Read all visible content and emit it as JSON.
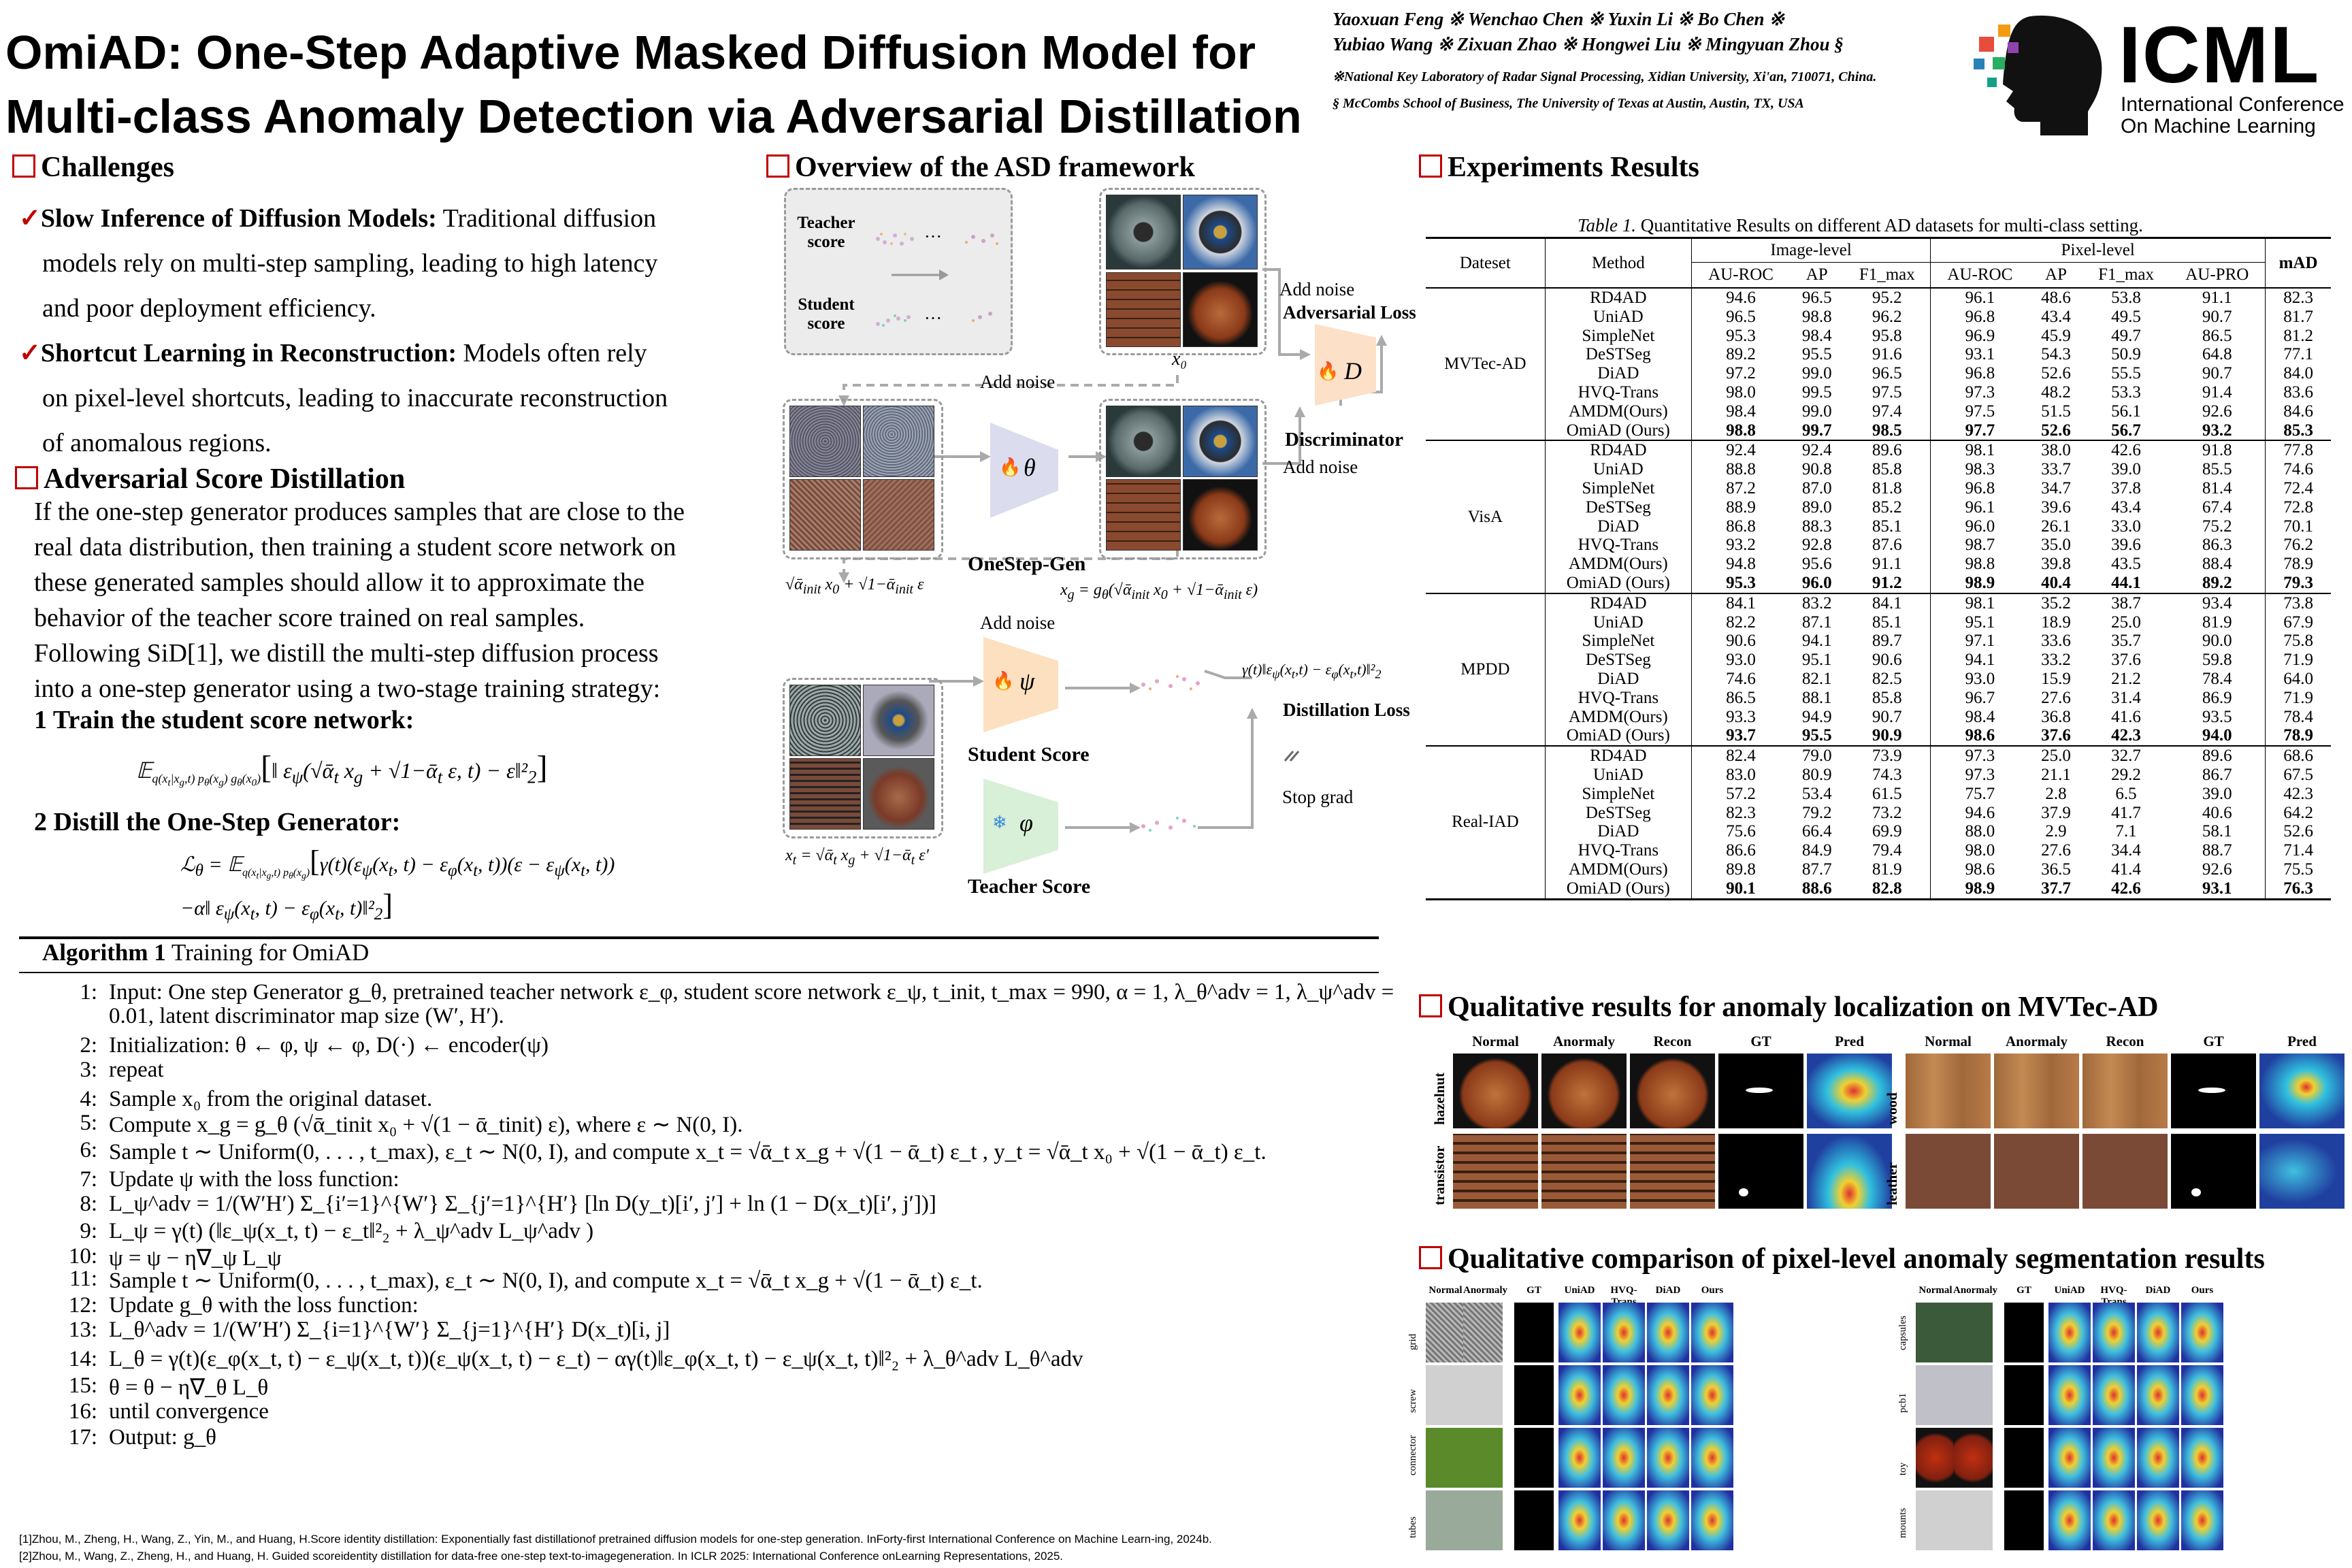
{
  "title": {
    "line1": "OmiAD: One-Step Adaptive Masked Diffusion Model for",
    "line2": "Multi-class Anomaly Detection via Adversarial Distillation"
  },
  "authors": {
    "line1": "Yaoxuan Feng ※   Wenchao Chen ※   Yuxin Li ※  Bo Chen ※",
    "line2": "Yubiao Wang ※  Zixuan Zhao ※  Hongwei Liu ※  Mingyuan Zhou §",
    "affil1": "※National Key Laboratory of Radar Signal Processing, Xidian University, Xi'an, 710071, China.",
    "affil2": "§  McCombs School of Business,  The University of Texas at Austin,  Austin, TX,  USA"
  },
  "logo": {
    "name": "ICML",
    "sub1": "International Conference",
    "sub2": "On Machine Learning"
  },
  "challenges": {
    "heading": "Challenges",
    "item1_bold": "Slow Inference of Diffusion Models:",
    "item1_rest": " Traditional diffusion",
    "item1_line2": "models rely  on multi-step sampling, leading to high latency",
    "item1_line3": "and poor deployment efficiency.",
    "item2_bold": "Shortcut Learning in Reconstruction:",
    "item2_rest": "  Models often rely",
    "item2_line2": "on pixel-level   shortcuts, leading to inaccurate reconstruction",
    "item2_line3": "of anomalous regions."
  },
  "asd": {
    "heading": "Adversarial Score Distillation",
    "p1": "If the one-step generator produces samples that are close to the",
    "p2": "real data distribution, then training a student score network on",
    "p3": "these generated samples should allow it to approximate the",
    "p4": "behavior of the teacher score trained on real samples.",
    "p5": "Following SiD[1], we distill the multi-step diffusion process",
    "p6": "into a one-step generator using a two-stage training strategy:",
    "step1": "1 Train the student score network:",
    "step2": "2 Distill the One-Step Generator:"
  },
  "overview": {
    "heading": "Overview of the ASD framework",
    "teacher_score": "Teacher\nscore",
    "student_score": "Student\nscore",
    "x0": "x₀",
    "add_noise": "Add noise",
    "adv_loss": "Adversarial Loss",
    "discriminator": "Discriminator",
    "D": "D",
    "theta": "θ",
    "onestep": "OneStep-Gen",
    "psi": "ψ",
    "phi": "φ",
    "student": "Student Score",
    "teacher": "Teacher Score",
    "distill_loss": "Distillation Loss",
    "stop_grad": "Stop grad"
  },
  "algorithm": {
    "title_bold": "Algorithm 1",
    "title_rest": " Training for OmiAD",
    "lines": [
      {
        "n": "1:",
        "t": "Input: One step Generator g_θ, pretrained teacher network ε_φ, student score network ε_ψ, t_init, t_max = 990, α = 1, λ_θ^adv = 1, λ_ψ^adv ="
      },
      {
        "n": "",
        "t": "0.01, latent discriminator map size (W′, H′)."
      },
      {
        "n": "2:",
        "t": "Initialization: θ ← φ, ψ ← φ, D(·) ← encoder(ψ)"
      },
      {
        "n": "3:",
        "t": "repeat"
      },
      {
        "n": "4:",
        "t": "    Sample x₀ from the original dataset."
      },
      {
        "n": "5:",
        "t": "    Compute x_g = g_θ (√ᾱ_tinit x₀ + √(1 − ᾱ_tinit) ε), where ε ∼ N(0, I)."
      },
      {
        "n": "6:",
        "t": "    Sample t ∼ Uniform(0, . . . , t_max), ε_t ∼ N(0, I), and compute x_t = √ᾱ_t x_g + √(1 − ᾱ_t) ε_t , y_t = √ᾱ_t x₀ + √(1 − ᾱ_t) ε_t."
      },
      {
        "n": "7:",
        "t": "    Update ψ with the loss function:"
      },
      {
        "n": "8:",
        "t": "        L_ψ^adv = 1/(W′H′) Σ_{i′=1}^{W′} Σ_{j′=1}^{H′} [ln D(y_t)[i′, j′] + ln (1 − D(x_t)[i′, j′])]"
      },
      {
        "n": "9:",
        "t": "        L_ψ = γ(t) (‖ε_ψ(x_t, t) − ε_t‖²₂ + λ_ψ^adv L_ψ^adv )"
      },
      {
        "n": "10:",
        "t": "        ψ = ψ − η∇_ψ L_ψ"
      },
      {
        "n": "11:",
        "t": "    Sample t ∼ Uniform(0, . . . , t_max), ε_t ∼ N(0, I), and compute x_t = √ᾱ_t x_g + √(1 − ᾱ_t) ε_t."
      },
      {
        "n": "12:",
        "t": "    Update g_θ with the loss function:"
      },
      {
        "n": "13:",
        "t": "        L_θ^adv = 1/(W′H′) Σ_{i=1}^{W′} Σ_{j=1}^{H′} D(x_t)[i, j]"
      },
      {
        "n": "14:",
        "t": "        L_θ = γ(t)(ε_φ(x_t, t) − ε_ψ(x_t, t))(ε_ψ(x_t, t) − ε_t) − αγ(t)‖ε_φ(x_t, t) − ε_ψ(x_t, t)‖²₂ + λ_θ^adv L_θ^adv"
      },
      {
        "n": "15:",
        "t": "        θ = θ − η∇_θ L_θ"
      },
      {
        "n": "16:",
        "t": "until convergence"
      },
      {
        "n": "17:",
        "t": "Output: g_θ"
      }
    ]
  },
  "references": {
    "r1": "[1]Zhou, M., Zheng, H., Wang, Z., Yin, M., and Huang, H.Score identity distillation: Exponentially fast distillationof pretrained diffusion models for one-step generation. InForty-first International Conference on Machine Learn-ing, 2024b.",
    "r2": "[2]Zhou, M., Wang, Z., Zheng, H., and Huang, H. Guided scoreidentity distillation for data-free one-step text-to-imagegeneration. In ICLR 2025: International Conference onLearning Representations, 2025."
  },
  "experiments": {
    "heading": "Experiments Results",
    "caption_italic": "Table 1.",
    "caption_rest": " Quantitative Results on different AD datasets for multi-class setting.",
    "group_image": "Image-level",
    "group_pixel": "Pixel-level",
    "col_dataset": "Dateset",
    "col_method": "Method",
    "cols": [
      "AU-ROC",
      "AP",
      "F1_max",
      "AU-ROC",
      "AP",
      "F1_max",
      "AU-PRO",
      "mAD"
    ],
    "datasets": [
      {
        "name": "MVTec-AD",
        "rows": [
          {
            "m": "RD4AD",
            "v": [
              "94.6",
              "96.5",
              "95.2",
              "96.1",
              "48.6",
              "53.8",
              "91.1",
              "82.3"
            ]
          },
          {
            "m": "UniAD",
            "v": [
              "96.5",
              "98.8",
              "96.2",
              "96.8",
              "43.4",
              "49.5",
              "90.7",
              "81.7"
            ]
          },
          {
            "m": "SimpleNet",
            "v": [
              "95.3",
              "98.4",
              "95.8",
              "96.9",
              "45.9",
              "49.7",
              "86.5",
              "81.2"
            ]
          },
          {
            "m": "DeSTSeg",
            "v": [
              "89.2",
              "95.5",
              "91.6",
              "93.1",
              "54.3",
              "50.9",
              "64.8",
              "77.1"
            ]
          },
          {
            "m": "DiAD",
            "v": [
              "97.2",
              "99.0",
              "96.5",
              "96.8",
              "52.6",
              "55.5",
              "90.7",
              "84.0"
            ]
          },
          {
            "m": "HVQ-Trans",
            "v": [
              "98.0",
              "99.5",
              "97.5",
              "97.3",
              "48.2",
              "53.3",
              "91.4",
              "83.6"
            ]
          },
          {
            "m": "AMDM(Ours)",
            "v": [
              "98.4",
              "99.0",
              "97.4",
              "97.5",
              "51.5",
              "56.1",
              "92.6",
              "84.6"
            ]
          },
          {
            "m": "OmiAD (Ours)",
            "v": [
              "98.8",
              "99.7",
              "98.5",
              "97.7",
              "52.6",
              "56.7",
              "93.2",
              "85.3"
            ]
          }
        ]
      },
      {
        "name": "VisA",
        "rows": [
          {
            "m": "RD4AD",
            "v": [
              "92.4",
              "92.4",
              "89.6",
              "98.1",
              "38.0",
              "42.6",
              "91.8",
              "77.8"
            ]
          },
          {
            "m": "UniAD",
            "v": [
              "88.8",
              "90.8",
              "85.8",
              "98.3",
              "33.7",
              "39.0",
              "85.5",
              "74.6"
            ]
          },
          {
            "m": "SimpleNet",
            "v": [
              "87.2",
              "87.0",
              "81.8",
              "96.8",
              "34.7",
              "37.8",
              "81.4",
              "72.4"
            ]
          },
          {
            "m": "DeSTSeg",
            "v": [
              "88.9",
              "89.0",
              "85.2",
              "96.1",
              "39.6",
              "43.4",
              "67.4",
              "72.8"
            ]
          },
          {
            "m": "DiAD",
            "v": [
              "86.8",
              "88.3",
              "85.1",
              "96.0",
              "26.1",
              "33.0",
              "75.2",
              "70.1"
            ]
          },
          {
            "m": "HVQ-Trans",
            "v": [
              "93.2",
              "92.8",
              "87.6",
              "98.7",
              "35.0",
              "39.6",
              "86.3",
              "76.2"
            ]
          },
          {
            "m": "AMDM(Ours)",
            "v": [
              "94.8",
              "95.6",
              "91.1",
              "98.8",
              "39.8",
              "43.5",
              "88.4",
              "78.9"
            ]
          },
          {
            "m": "OmiAD (Ours)",
            "v": [
              "95.3",
              "96.0",
              "91.2",
              "98.9",
              "40.4",
              "44.1",
              "89.2",
              "79.3"
            ]
          }
        ]
      },
      {
        "name": "MPDD",
        "rows": [
          {
            "m": "RD4AD",
            "v": [
              "84.1",
              "83.2",
              "84.1",
              "98.1",
              "35.2",
              "38.7",
              "93.4",
              "73.8"
            ]
          },
          {
            "m": "UniAD",
            "v": [
              "82.2",
              "87.1",
              "85.1",
              "95.1",
              "18.9",
              "25.0",
              "81.9",
              "67.9"
            ]
          },
          {
            "m": "SimpleNet",
            "v": [
              "90.6",
              "94.1",
              "89.7",
              "97.1",
              "33.6",
              "35.7",
              "90.0",
              "75.8"
            ]
          },
          {
            "m": "DeSTSeg",
            "v": [
              "93.0",
              "95.1",
              "90.6",
              "94.1",
              "33.2",
              "37.6",
              "59.8",
              "71.9"
            ]
          },
          {
            "m": "DiAD",
            "v": [
              "74.6",
              "82.1",
              "82.5",
              "93.0",
              "15.9",
              "21.2",
              "78.4",
              "64.0"
            ]
          },
          {
            "m": "HVQ-Trans",
            "v": [
              "86.5",
              "88.1",
              "85.8",
              "96.7",
              "27.6",
              "31.4",
              "86.9",
              "71.9"
            ]
          },
          {
            "m": "AMDM(Ours)",
            "v": [
              "93.3",
              "94.9",
              "90.7",
              "98.4",
              "36.8",
              "41.6",
              "93.5",
              "78.4"
            ]
          },
          {
            "m": "OmiAD (Ours)",
            "v": [
              "93.7",
              "95.5",
              "90.9",
              "98.6",
              "37.6",
              "42.3",
              "94.0",
              "78.9"
            ]
          }
        ]
      },
      {
        "name": "Real-IAD",
        "rows": [
          {
            "m": "RD4AD",
            "v": [
              "82.4",
              "79.0",
              "73.9",
              "97.3",
              "25.0",
              "32.7",
              "89.6",
              "68.6"
            ]
          },
          {
            "m": "UniAD",
            "v": [
              "83.0",
              "80.9",
              "74.3",
              "97.3",
              "21.1",
              "29.2",
              "86.7",
              "67.5"
            ]
          },
          {
            "m": "SimpleNet",
            "v": [
              "57.2",
              "53.4",
              "61.5",
              "75.7",
              "2.8",
              "6.5",
              "39.0",
              "42.3"
            ]
          },
          {
            "m": "DeSTSeg",
            "v": [
              "82.3",
              "79.2",
              "73.2",
              "94.6",
              "37.9",
              "41.7",
              "40.6",
              "64.2"
            ]
          },
          {
            "m": "DiAD",
            "v": [
              "75.6",
              "66.4",
              "69.9",
              "88.0",
              "2.9",
              "7.1",
              "58.1",
              "52.6"
            ]
          },
          {
            "m": "HVQ-Trans",
            "v": [
              "86.6",
              "84.9",
              "79.4",
              "98.0",
              "27.6",
              "34.4",
              "88.7",
              "71.4"
            ]
          },
          {
            "m": "AMDM(Ours)",
            "v": [
              "89.8",
              "87.7",
              "81.9",
              "98.6",
              "36.5",
              "41.4",
              "92.6",
              "75.5"
            ]
          },
          {
            "m": "OmiAD (Ours)",
            "v": [
              "90.1",
              "88.6",
              "82.8",
              "98.9",
              "37.7",
              "42.6",
              "93.1",
              "76.3"
            ]
          }
        ]
      }
    ]
  },
  "qual1": {
    "heading": "Qualitative results for anomaly localization on MVTec-AD",
    "cols": [
      "Normal",
      "Anormaly",
      "Recon",
      "GT",
      "Pred"
    ],
    "rows_left": [
      "hazelnut",
      "transistor"
    ],
    "rows_right": [
      "wood",
      "leather"
    ]
  },
  "qual2": {
    "heading": "Qualitative comparison of pixel-level anomaly segmentation results",
    "cols": [
      "Normal",
      "Anormaly",
      "GT",
      "UniAD",
      "HVQ-Trans",
      "DiAD",
      "Ours"
    ],
    "rows_left": [
      "grid",
      "screw",
      "connector",
      "tubes"
    ],
    "rows_right": [
      "capsules",
      "pcb1",
      "toy",
      "mounts"
    ]
  }
}
